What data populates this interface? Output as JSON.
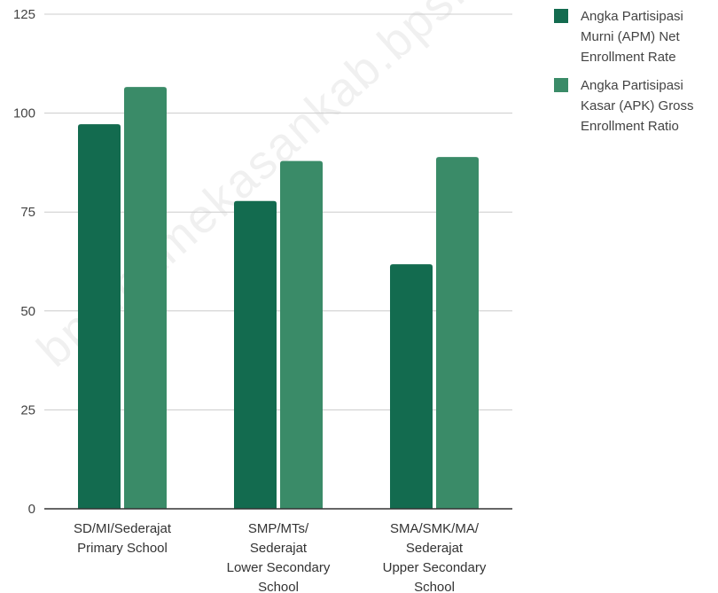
{
  "watermark": "bps.pamekasankab.bps.go.id",
  "chart_data": {
    "type": "bar",
    "categories": [
      [
        "SD/MI/Sederajat",
        "Primary School"
      ],
      [
        "SMP/MTs/",
        "Sederajat",
        "Lower Secondary",
        "School"
      ],
      [
        "SMA/SMK/MA/",
        "Sederajat",
        "Upper Secondary",
        "School"
      ]
    ],
    "series": [
      {
        "name": "Angka Partisipasi Murni (APM) Net Enrollment Rate",
        "legend_lines": [
          "Angka Partisipasi",
          "Murni (APM) Net",
          "Enrollment Rate"
        ],
        "color": "#136b4f",
        "values": [
          97.2,
          77.8,
          61.8
        ]
      },
      {
        "name": "Angka Partisipasi Kasar (APK) Gross Enrollment Ratio",
        "legend_lines": [
          "Angka Partisipasi",
          "Kasar (APK) Gross",
          "Enrollment Ratio"
        ],
        "color": "#3a8b68",
        "values": [
          106.6,
          87.9,
          88.9
        ]
      }
    ],
    "ylim": [
      0,
      125
    ],
    "yticks": [
      0,
      25,
      50,
      75,
      100,
      125
    ],
    "grid": true,
    "legend": "right",
    "title": "",
    "xlabel": "",
    "ylabel": ""
  }
}
